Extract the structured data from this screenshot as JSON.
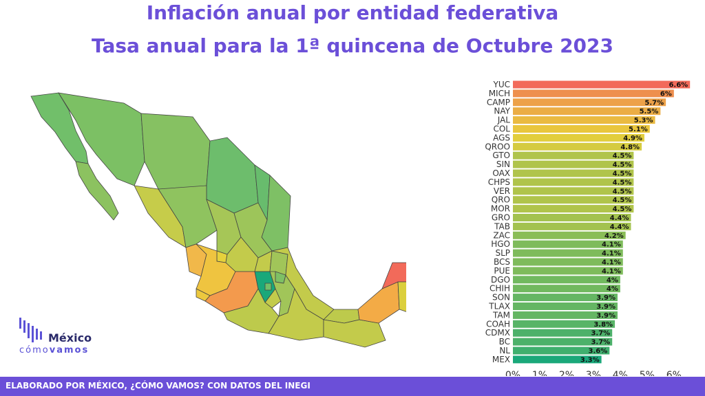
{
  "header": {
    "title": "Inflación anual por entidad federativa",
    "subtitle": "Tasa anual para la 1ª quincena de Octubre 2023"
  },
  "logo": {
    "name": "México",
    "tagline_light": "cómo",
    "tagline_bold": "vamos"
  },
  "footer": {
    "text": "ELABORADO POR MÉXICO, ¿CÓMO VAMOS? CON DATOS DEL INEGI"
  },
  "chart_data": {
    "type": "bar",
    "orientation": "horizontal",
    "title": "",
    "xlabel": "",
    "ylabel": "",
    "xlim": [
      0,
      6.8
    ],
    "grid": false,
    "ticks": [
      "0%",
      "1%",
      "2%",
      "3%",
      "4%",
      "5%",
      "6%"
    ],
    "categories": [
      "YUC",
      "MICH",
      "CAMP",
      "NAY",
      "JAL",
      "COL",
      "AGS",
      "QROO",
      "GTO",
      "SIN",
      "OAX",
      "CHPS",
      "VER",
      "QRO",
      "MOR",
      "GRO",
      "TAB",
      "ZAC",
      "HGO",
      "SLP",
      "BCS",
      "PUE",
      "DGO",
      "CHIH",
      "SON",
      "TLAX",
      "TAM",
      "COAH",
      "CDMX",
      "BC",
      "NL",
      "MEX"
    ],
    "values": [
      6.6,
      6,
      5.7,
      5.5,
      5.3,
      5.1,
      4.9,
      4.8,
      4.5,
      4.5,
      4.5,
      4.5,
      4.5,
      4.5,
      4.5,
      4.4,
      4.4,
      4.2,
      4.1,
      4.1,
      4.1,
      4.1,
      4,
      4,
      3.9,
      3.9,
      3.9,
      3.8,
      3.7,
      3.7,
      3.6,
      3.3
    ],
    "labels": [
      "6.6%",
      "6%",
      "5.7%",
      "5.5%",
      "5.3%",
      "5.1%",
      "4.9%",
      "4.8%",
      "4.5%",
      "4.5%",
      "4.5%",
      "4.5%",
      "4.5%",
      "4.5%",
      "4.5%",
      "4.4%",
      "4.4%",
      "4.2%",
      "4.1%",
      "4.1%",
      "4.1%",
      "4.1%",
      "4%",
      "4%",
      "3.9%",
      "3.9%",
      "3.9%",
      "3.8%",
      "3.7%",
      "3.7%",
      "3.6%",
      "3.3%"
    ],
    "color_scale": {
      "low": "#1aa87a",
      "mid": "#e8cf3a",
      "high": "#f26a5a"
    }
  }
}
